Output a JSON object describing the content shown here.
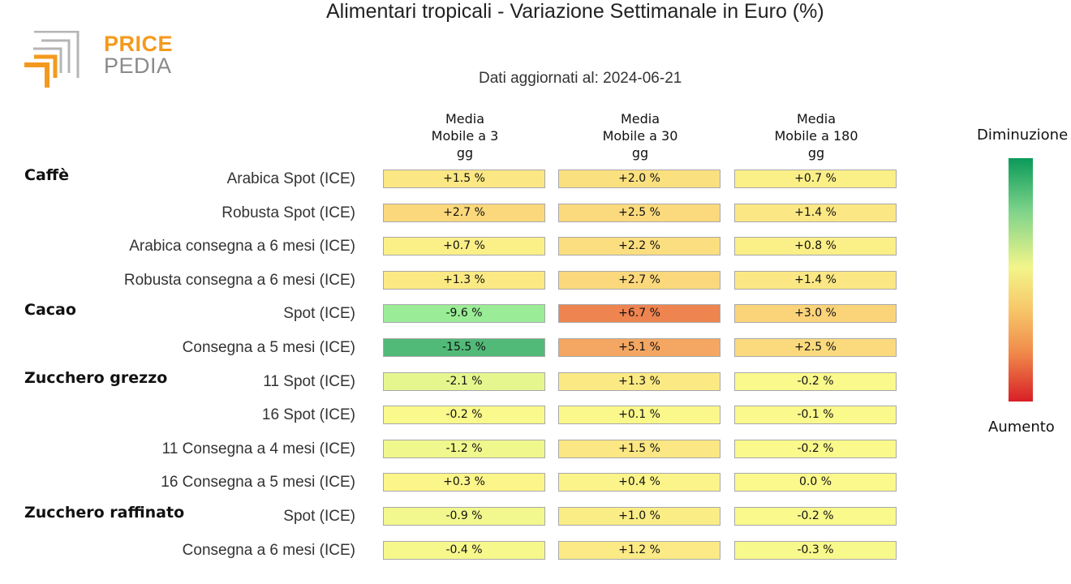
{
  "logo": {
    "line1": "PRICE",
    "line2": "PEDIA"
  },
  "title": "Alimentari tropicali - Variazione Settimanale in Euro (%)",
  "subtitle": "Dati aggiornati al: 2024-06-21",
  "legend": {
    "top": "Diminuzione",
    "bottom": "Aumento"
  },
  "colors": {
    "brand_orange": "#f39a1e",
    "brand_gray": "#8a8a8a"
  },
  "chart_data": {
    "type": "heatmap",
    "columns": [
      [
        "Media",
        "Mobile a 3",
        "gg"
      ],
      [
        "Media",
        "Mobile a 30",
        "gg"
      ],
      [
        "Media",
        "Mobile a 180",
        "gg"
      ]
    ],
    "groups": [
      {
        "name": "Caffè",
        "rows": [
          {
            "label": "Arabica Spot (ICE)",
            "values": [
              1.5,
              2.0,
              0.7
            ],
            "texts": [
              "+1.5 %",
              "+2.0 %",
              "+0.7 %"
            ]
          },
          {
            "label": "Robusta Spot (ICE)",
            "values": [
              2.7,
              2.5,
              1.4
            ],
            "texts": [
              "+2.7 %",
              "+2.5 %",
              "+1.4 %"
            ]
          },
          {
            "label": "Arabica consegna a 6 mesi (ICE)",
            "values": [
              0.7,
              2.2,
              0.8
            ],
            "texts": [
              "+0.7 %",
              "+2.2 %",
              "+0.8 %"
            ]
          },
          {
            "label": "Robusta consegna a 6 mesi (ICE)",
            "values": [
              1.3,
              2.7,
              1.4
            ],
            "texts": [
              "+1.3 %",
              "+2.7 %",
              "+1.4 %"
            ]
          }
        ]
      },
      {
        "name": "Cacao",
        "rows": [
          {
            "label": "Spot (ICE)",
            "values": [
              -9.6,
              6.7,
              3.0
            ],
            "texts": [
              "-9.6 %",
              "+6.7 %",
              "+3.0 %"
            ]
          },
          {
            "label": "Consegna a 5 mesi (ICE)",
            "values": [
              -15.5,
              5.1,
              2.5
            ],
            "texts": [
              "-15.5 %",
              "+5.1 %",
              "+2.5 %"
            ]
          }
        ]
      },
      {
        "name": "Zucchero grezzo",
        "rows": [
          {
            "label": "11 Spot (ICE)",
            "values": [
              -2.1,
              1.3,
              -0.2
            ],
            "texts": [
              "-2.1 %",
              "+1.3 %",
              "-0.2 %"
            ]
          },
          {
            "label": "16 Spot (ICE)",
            "values": [
              -0.2,
              0.1,
              -0.1
            ],
            "texts": [
              "-0.2 %",
              "+0.1 %",
              "-0.1 %"
            ]
          },
          {
            "label": "11 Consegna a 4 mesi (ICE)",
            "values": [
              -1.2,
              1.5,
              -0.2
            ],
            "texts": [
              "-1.2 %",
              "+1.5 %",
              "-0.2 %"
            ]
          },
          {
            "label": "16 Consegna a 5 mesi (ICE)",
            "values": [
              0.3,
              0.4,
              0.0
            ],
            "texts": [
              "+0.3 %",
              "+0.4 %",
              "0.0 %"
            ]
          }
        ]
      },
      {
        "name": "Zucchero raffinato",
        "rows": [
          {
            "label": "Spot (ICE)",
            "values": [
              -0.9,
              1.0,
              -0.2
            ],
            "texts": [
              "-0.9 %",
              "+1.0 %",
              "-0.2 %"
            ]
          },
          {
            "label": "Consegna a 6 mesi (ICE)",
            "values": [
              -0.4,
              1.2,
              -0.3
            ],
            "texts": [
              "-0.4 %",
              "+1.2 %",
              "-0.3 %"
            ]
          }
        ]
      }
    ]
  }
}
